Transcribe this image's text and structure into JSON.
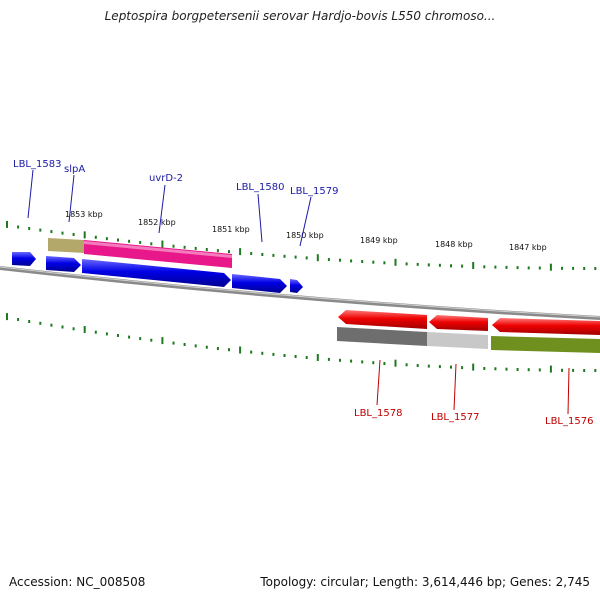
{
  "title": "Leptospira borgpetersenii serovar Hardjo-bovis L550 chromoso...",
  "footer": {
    "accession": "Accession: NC_008508",
    "summary": "Topology: circular; Length: 3,614,446 bp; Genes: 2,745"
  },
  "colors": {
    "backbone": "#7a7a7a",
    "tick": "#1f7a1f",
    "forward_label": "#1a1aa6",
    "reverse_label": "#c00000"
  },
  "kbp_labels": [
    "1853 kbp",
    "1852 kbp",
    "1851 kbp",
    "1850 kbp",
    "1849 kbp",
    "1848 kbp",
    "1847 kbp"
  ],
  "forward_genes": [
    {
      "name": "",
      "color": "#0000e6",
      "dir": "right"
    },
    {
      "name": "",
      "color": "#0000e6",
      "dir": "right"
    },
    {
      "name": "",
      "color": "#0000e6",
      "dir": "right"
    },
    {
      "name": "",
      "color": "#0000e6",
      "dir": "right"
    },
    {
      "name": "",
      "color": "#0000e6",
      "dir": "right"
    }
  ],
  "feature_bars": [
    {
      "color": "#b3a86a"
    },
    {
      "color": "#e8188a"
    },
    {
      "color": "#6e6e6e"
    },
    {
      "color": "#c8c8c8"
    },
    {
      "color": "#6f8f1f"
    }
  ],
  "reverse_genes": [
    {
      "color": "#ee0000",
      "dir": "left"
    },
    {
      "color": "#ee0000",
      "dir": "left"
    },
    {
      "color": "#ee0000",
      "dir": "left"
    }
  ],
  "gene_labels": {
    "forward": [
      "LBL_1583",
      "slpA",
      "uvrD-2",
      "LBL_1580",
      "LBL_1579"
    ],
    "reverse": [
      "LBL_1578",
      "LBL_1577",
      "LBL_1576"
    ]
  }
}
